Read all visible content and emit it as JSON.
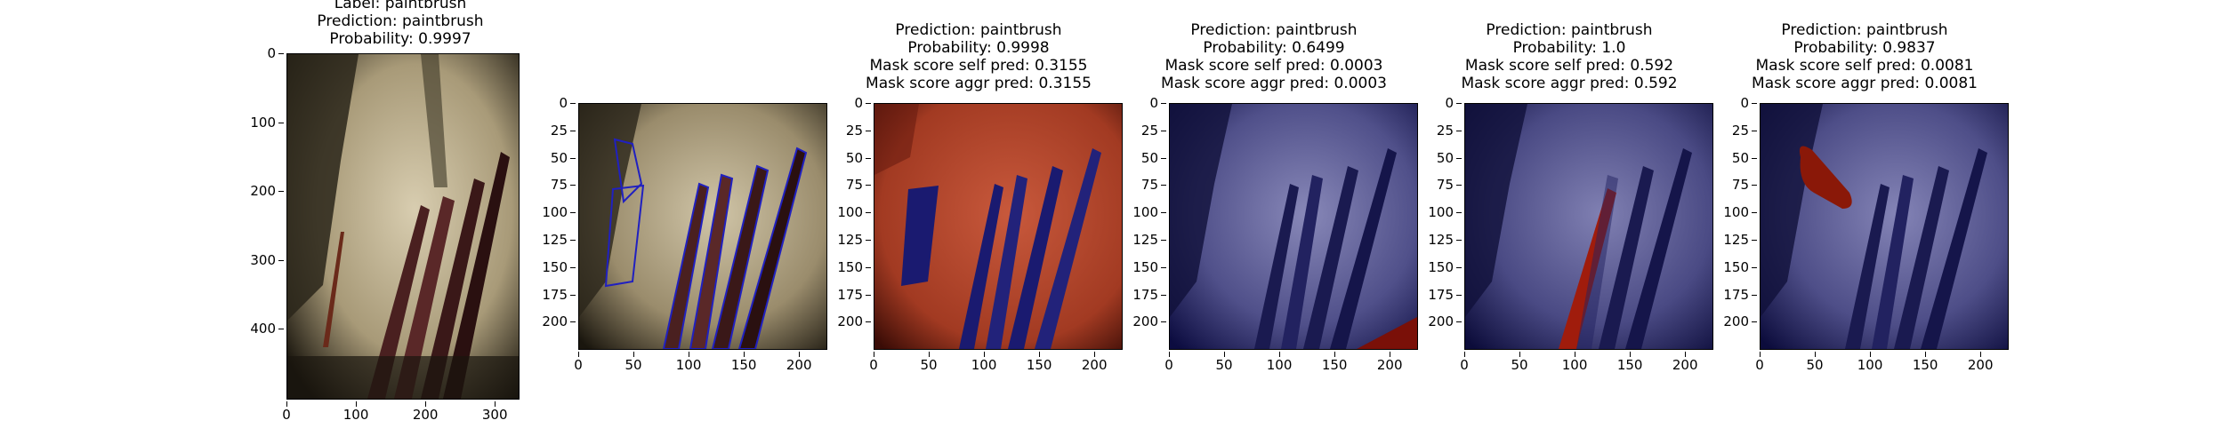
{
  "panels": [
    {
      "id": "original",
      "title_lines": [
        "Label: paintbrush",
        "Prediction: paintbrush",
        "Probability: 0.9997"
      ],
      "xticks": [
        "0",
        "100",
        "200",
        "300"
      ],
      "yticks": [
        "0",
        "100",
        "200",
        "300",
        "400"
      ],
      "image_type": "photo"
    },
    {
      "id": "segmentation",
      "title_lines": [],
      "xticks": [
        "0",
        "50",
        "100",
        "150",
        "200"
      ],
      "yticks": [
        "0",
        "25",
        "50",
        "75",
        "100",
        "125",
        "150",
        "175",
        "200"
      ],
      "image_type": "contours"
    },
    {
      "id": "mask-1",
      "title_lines": [
        "Prediction: paintbrush",
        "Probability: 0.9998",
        "Mask score self pred: 0.3155",
        "Mask score aggr pred: 0.3155"
      ],
      "xticks": [
        "0",
        "50",
        "100",
        "150",
        "200"
      ],
      "yticks": [
        "0",
        "25",
        "50",
        "75",
        "100",
        "125",
        "150",
        "175",
        "200"
      ],
      "image_type": "mask-red-background"
    },
    {
      "id": "mask-2",
      "title_lines": [
        "Prediction: paintbrush",
        "Probability: 0.6499",
        "Mask score self pred: 0.0003",
        "Mask score aggr pred: 0.0003"
      ],
      "xticks": [
        "0",
        "50",
        "100",
        "150",
        "200"
      ],
      "yticks": [
        "0",
        "25",
        "50",
        "75",
        "100",
        "125",
        "150",
        "175",
        "200"
      ],
      "image_type": "mask-corner"
    },
    {
      "id": "mask-3",
      "title_lines": [
        "Prediction: paintbrush",
        "Probability: 1.0",
        "Mask score self pred: 0.592",
        "Mask score aggr pred: 0.592"
      ],
      "xticks": [
        "0",
        "50",
        "100",
        "150",
        "200"
      ],
      "yticks": [
        "0",
        "25",
        "50",
        "75",
        "100",
        "125",
        "150",
        "175",
        "200"
      ],
      "image_type": "mask-brush"
    },
    {
      "id": "mask-4",
      "title_lines": [
        "Prediction: paintbrush",
        "Probability: 0.9837",
        "Mask score self pred: 0.0081",
        "Mask score aggr pred: 0.0081"
      ],
      "xticks": [
        "0",
        "50",
        "100",
        "150",
        "200"
      ],
      "yticks": [
        "0",
        "25",
        "50",
        "75",
        "100",
        "125",
        "150",
        "175",
        "200"
      ],
      "image_type": "mask-blob"
    }
  ],
  "colors": {
    "photo_light": "#cfc4a8",
    "photo_dark": "#1d1a12",
    "mask_red": "#c0432a",
    "mask_blue": "#1a1a70",
    "contour": "#2020c0"
  }
}
